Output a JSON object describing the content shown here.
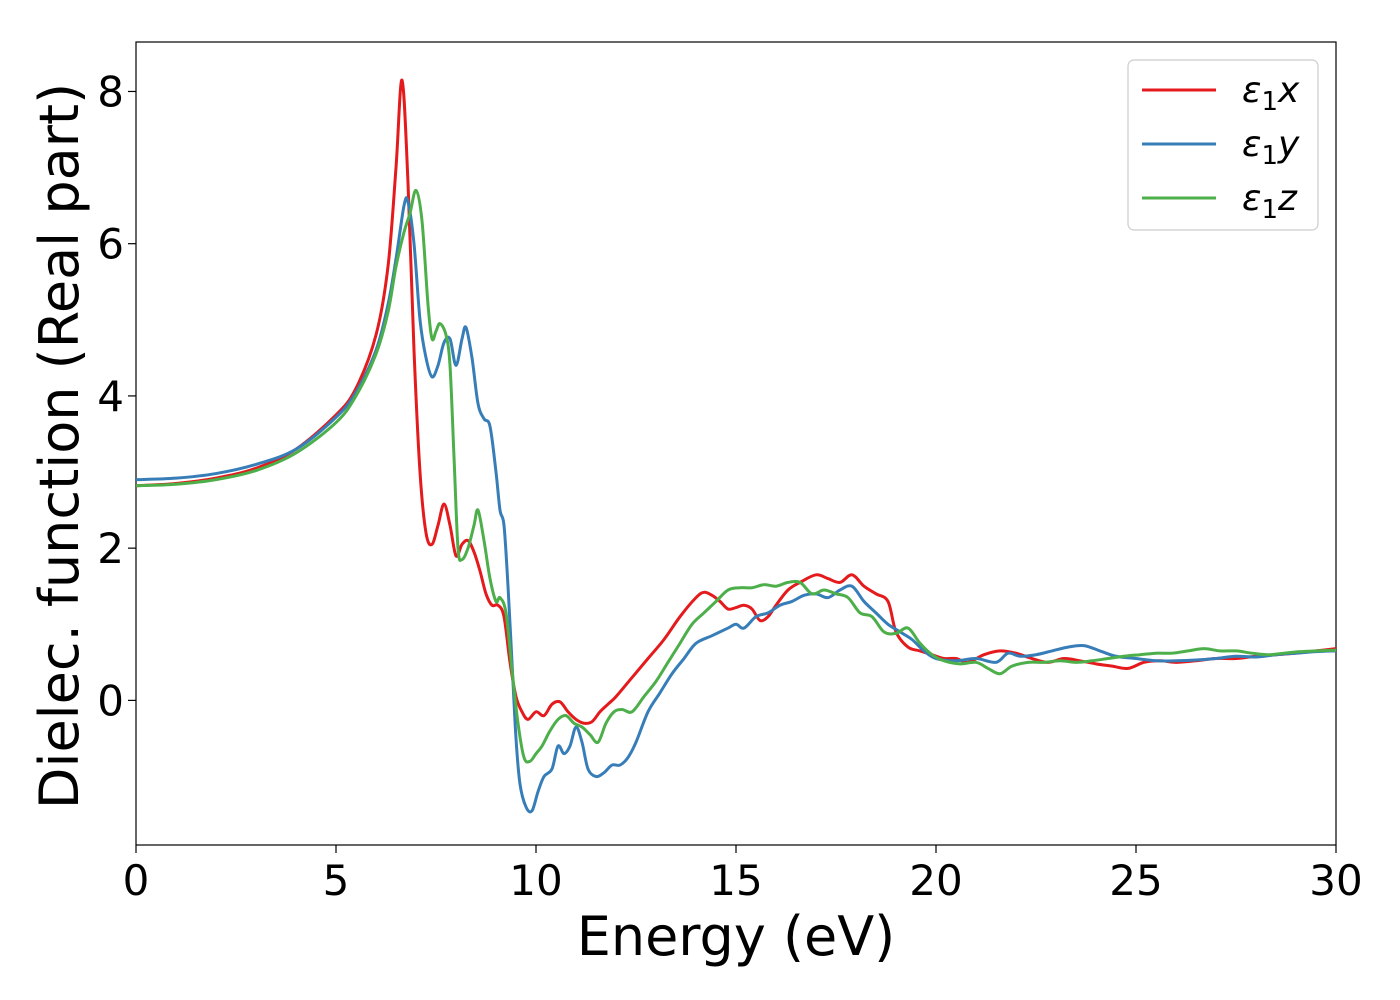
{
  "chart_data": {
    "type": "line",
    "title": "",
    "xlabel": "Energy (eV)",
    "ylabel": "Dielec. function (Real part)",
    "xlim": [
      0,
      30
    ],
    "ylim": [
      -1.9,
      8.65
    ],
    "xticks": [
      0,
      5,
      10,
      15,
      20,
      25,
      30
    ],
    "yticks": [
      0,
      2,
      4,
      6,
      8
    ],
    "grid": false,
    "legend_position": "top-right",
    "series": [
      {
        "name": "ε₁x",
        "legend_base": "ε",
        "legend_sub": "1",
        "legend_tail": "x",
        "color": "#e41a1c",
        "points": [
          [
            0,
            2.82
          ],
          [
            1,
            2.85
          ],
          [
            2,
            2.92
          ],
          [
            3,
            3.05
          ],
          [
            4,
            3.3
          ],
          [
            5,
            3.75
          ],
          [
            5.5,
            4.1
          ],
          [
            6,
            4.8
          ],
          [
            6.3,
            5.7
          ],
          [
            6.5,
            7.0
          ],
          [
            6.65,
            8.15
          ],
          [
            6.8,
            6.8
          ],
          [
            6.95,
            4.6
          ],
          [
            7.1,
            3.0
          ],
          [
            7.25,
            2.2
          ],
          [
            7.4,
            2.05
          ],
          [
            7.55,
            2.3
          ],
          [
            7.7,
            2.58
          ],
          [
            7.85,
            2.3
          ],
          [
            8.0,
            1.9
          ],
          [
            8.15,
            2.05
          ],
          [
            8.3,
            2.1
          ],
          [
            8.45,
            1.95
          ],
          [
            8.6,
            1.7
          ],
          [
            8.75,
            1.4
          ],
          [
            8.9,
            1.25
          ],
          [
            9.05,
            1.25
          ],
          [
            9.2,
            1.1
          ],
          [
            9.35,
            0.5
          ],
          [
            9.5,
            0.05
          ],
          [
            9.65,
            -0.15
          ],
          [
            9.8,
            -0.25
          ],
          [
            10.0,
            -0.15
          ],
          [
            10.2,
            -0.2
          ],
          [
            10.4,
            -0.05
          ],
          [
            10.6,
            -0.02
          ],
          [
            10.8,
            -0.15
          ],
          [
            11.0,
            -0.25
          ],
          [
            11.2,
            -0.3
          ],
          [
            11.4,
            -0.28
          ],
          [
            11.6,
            -0.15
          ],
          [
            11.8,
            -0.05
          ],
          [
            12.0,
            0.05
          ],
          [
            12.4,
            0.3
          ],
          [
            12.8,
            0.55
          ],
          [
            13.2,
            0.8
          ],
          [
            13.6,
            1.1
          ],
          [
            14.0,
            1.35
          ],
          [
            14.2,
            1.42
          ],
          [
            14.4,
            1.38
          ],
          [
            14.6,
            1.3
          ],
          [
            14.8,
            1.2
          ],
          [
            15.0,
            1.22
          ],
          [
            15.2,
            1.25
          ],
          [
            15.4,
            1.2
          ],
          [
            15.6,
            1.05
          ],
          [
            15.8,
            1.1
          ],
          [
            16.0,
            1.25
          ],
          [
            16.3,
            1.45
          ],
          [
            16.6,
            1.55
          ],
          [
            17.0,
            1.65
          ],
          [
            17.3,
            1.6
          ],
          [
            17.6,
            1.55
          ],
          [
            17.9,
            1.65
          ],
          [
            18.2,
            1.5
          ],
          [
            18.5,
            1.4
          ],
          [
            18.8,
            1.3
          ],
          [
            19.0,
            0.9
          ],
          [
            19.3,
            0.7
          ],
          [
            19.6,
            0.65
          ],
          [
            19.9,
            0.6
          ],
          [
            20.2,
            0.55
          ],
          [
            20.5,
            0.55
          ],
          [
            20.8,
            0.5
          ],
          [
            21.2,
            0.6
          ],
          [
            21.6,
            0.65
          ],
          [
            22.0,
            0.62
          ],
          [
            22.4,
            0.55
          ],
          [
            22.8,
            0.5
          ],
          [
            23.2,
            0.55
          ],
          [
            23.6,
            0.52
          ],
          [
            24.0,
            0.48
          ],
          [
            24.4,
            0.45
          ],
          [
            24.8,
            0.42
          ],
          [
            25.2,
            0.5
          ],
          [
            25.6,
            0.52
          ],
          [
            26.0,
            0.5
          ],
          [
            26.5,
            0.52
          ],
          [
            27.0,
            0.55
          ],
          [
            27.5,
            0.55
          ],
          [
            28.0,
            0.58
          ],
          [
            28.5,
            0.6
          ],
          [
            29.0,
            0.62
          ],
          [
            29.5,
            0.65
          ],
          [
            30.0,
            0.68
          ]
        ]
      },
      {
        "name": "ε₁y",
        "legend_base": "ε",
        "legend_sub": "1",
        "legend_tail": "y",
        "color": "#377eb8",
        "points": [
          [
            0,
            2.9
          ],
          [
            1,
            2.92
          ],
          [
            2,
            2.98
          ],
          [
            3,
            3.1
          ],
          [
            4,
            3.3
          ],
          [
            5,
            3.72
          ],
          [
            5.5,
            4.05
          ],
          [
            6,
            4.6
          ],
          [
            6.3,
            5.2
          ],
          [
            6.5,
            5.8
          ],
          [
            6.7,
            6.5
          ],
          [
            6.8,
            6.55
          ],
          [
            6.95,
            6.0
          ],
          [
            7.1,
            5.0
          ],
          [
            7.25,
            4.5
          ],
          [
            7.4,
            4.25
          ],
          [
            7.55,
            4.4
          ],
          [
            7.7,
            4.7
          ],
          [
            7.85,
            4.75
          ],
          [
            8.0,
            4.4
          ],
          [
            8.15,
            4.75
          ],
          [
            8.25,
            4.9
          ],
          [
            8.4,
            4.5
          ],
          [
            8.55,
            3.9
          ],
          [
            8.7,
            3.7
          ],
          [
            8.85,
            3.6
          ],
          [
            9.0,
            3.0
          ],
          [
            9.1,
            2.5
          ],
          [
            9.2,
            2.3
          ],
          [
            9.3,
            1.5
          ],
          [
            9.4,
            0.5
          ],
          [
            9.5,
            -0.5
          ],
          [
            9.6,
            -1.1
          ],
          [
            9.75,
            -1.4
          ],
          [
            9.9,
            -1.45
          ],
          [
            10.05,
            -1.2
          ],
          [
            10.2,
            -1.0
          ],
          [
            10.4,
            -0.9
          ],
          [
            10.55,
            -0.6
          ],
          [
            10.7,
            -0.7
          ],
          [
            10.85,
            -0.6
          ],
          [
            11.0,
            -0.35
          ],
          [
            11.15,
            -0.55
          ],
          [
            11.3,
            -0.9
          ],
          [
            11.5,
            -1.0
          ],
          [
            11.7,
            -0.95
          ],
          [
            11.9,
            -0.85
          ],
          [
            12.1,
            -0.85
          ],
          [
            12.3,
            -0.75
          ],
          [
            12.5,
            -0.55
          ],
          [
            12.8,
            -0.15
          ],
          [
            13.1,
            0.1
          ],
          [
            13.4,
            0.35
          ],
          [
            13.7,
            0.55
          ],
          [
            14.0,
            0.75
          ],
          [
            14.4,
            0.85
          ],
          [
            14.8,
            0.95
          ],
          [
            15.0,
            1.0
          ],
          [
            15.2,
            0.95
          ],
          [
            15.5,
            1.1
          ],
          [
            15.8,
            1.15
          ],
          [
            16.1,
            1.25
          ],
          [
            16.4,
            1.3
          ],
          [
            16.7,
            1.38
          ],
          [
            17.0,
            1.4
          ],
          [
            17.3,
            1.35
          ],
          [
            17.6,
            1.45
          ],
          [
            17.9,
            1.5
          ],
          [
            18.2,
            1.3
          ],
          [
            18.5,
            1.15
          ],
          [
            18.8,
            1.0
          ],
          [
            19.1,
            0.9
          ],
          [
            19.4,
            0.8
          ],
          [
            19.7,
            0.65
          ],
          [
            20.0,
            0.55
          ],
          [
            20.5,
            0.52
          ],
          [
            21.0,
            0.55
          ],
          [
            21.5,
            0.5
          ],
          [
            21.8,
            0.62
          ],
          [
            22.1,
            0.58
          ],
          [
            22.5,
            0.6
          ],
          [
            22.9,
            0.65
          ],
          [
            23.3,
            0.7
          ],
          [
            23.7,
            0.72
          ],
          [
            24.1,
            0.65
          ],
          [
            24.5,
            0.58
          ],
          [
            25.0,
            0.55
          ],
          [
            25.5,
            0.52
          ],
          [
            26.0,
            0.52
          ],
          [
            26.5,
            0.53
          ],
          [
            27.0,
            0.55
          ],
          [
            27.5,
            0.58
          ],
          [
            28.0,
            0.57
          ],
          [
            28.5,
            0.6
          ],
          [
            29.0,
            0.62
          ],
          [
            29.5,
            0.64
          ],
          [
            30.0,
            0.65
          ]
        ]
      },
      {
        "name": "ε₁z",
        "legend_base": "ε",
        "legend_sub": "1",
        "legend_tail": "z",
        "color": "#4daf4a",
        "points": [
          [
            0,
            2.82
          ],
          [
            1,
            2.84
          ],
          [
            2,
            2.9
          ],
          [
            3,
            3.02
          ],
          [
            4,
            3.25
          ],
          [
            5,
            3.65
          ],
          [
            5.5,
            4.0
          ],
          [
            6,
            4.55
          ],
          [
            6.3,
            5.1
          ],
          [
            6.5,
            5.7
          ],
          [
            6.7,
            6.15
          ],
          [
            6.85,
            6.4
          ],
          [
            7.0,
            6.7
          ],
          [
            7.15,
            6.3
          ],
          [
            7.3,
            5.2
          ],
          [
            7.4,
            4.75
          ],
          [
            7.5,
            4.85
          ],
          [
            7.6,
            4.95
          ],
          [
            7.75,
            4.8
          ],
          [
            7.85,
            4.4
          ],
          [
            7.95,
            3.2
          ],
          [
            8.05,
            2.0
          ],
          [
            8.15,
            1.85
          ],
          [
            8.3,
            2.0
          ],
          [
            8.45,
            2.3
          ],
          [
            8.55,
            2.5
          ],
          [
            8.7,
            2.1
          ],
          [
            8.85,
            1.6
          ],
          [
            9.0,
            1.3
          ],
          [
            9.1,
            1.35
          ],
          [
            9.25,
            1.15
          ],
          [
            9.4,
            0.4
          ],
          [
            9.55,
            -0.3
          ],
          [
            9.7,
            -0.75
          ],
          [
            9.85,
            -0.8
          ],
          [
            10.0,
            -0.7
          ],
          [
            10.15,
            -0.6
          ],
          [
            10.35,
            -0.4
          ],
          [
            10.55,
            -0.25
          ],
          [
            10.75,
            -0.2
          ],
          [
            10.95,
            -0.3
          ],
          [
            11.15,
            -0.35
          ],
          [
            11.35,
            -0.45
          ],
          [
            11.55,
            -0.55
          ],
          [
            11.75,
            -0.3
          ],
          [
            11.95,
            -0.15
          ],
          [
            12.15,
            -0.12
          ],
          [
            12.4,
            -0.15
          ],
          [
            12.7,
            0.05
          ],
          [
            13.0,
            0.25
          ],
          [
            13.3,
            0.5
          ],
          [
            13.6,
            0.75
          ],
          [
            13.9,
            1.0
          ],
          [
            14.2,
            1.15
          ],
          [
            14.5,
            1.3
          ],
          [
            14.8,
            1.45
          ],
          [
            15.1,
            1.48
          ],
          [
            15.4,
            1.48
          ],
          [
            15.7,
            1.52
          ],
          [
            16.0,
            1.5
          ],
          [
            16.3,
            1.55
          ],
          [
            16.6,
            1.55
          ],
          [
            16.9,
            1.4
          ],
          [
            17.2,
            1.45
          ],
          [
            17.5,
            1.4
          ],
          [
            17.8,
            1.35
          ],
          [
            18.1,
            1.15
          ],
          [
            18.4,
            1.1
          ],
          [
            18.7,
            0.9
          ],
          [
            19.0,
            0.88
          ],
          [
            19.3,
            0.95
          ],
          [
            19.6,
            0.75
          ],
          [
            19.9,
            0.6
          ],
          [
            20.2,
            0.52
          ],
          [
            20.6,
            0.48
          ],
          [
            21.0,
            0.5
          ],
          [
            21.3,
            0.42
          ],
          [
            21.6,
            0.35
          ],
          [
            21.9,
            0.45
          ],
          [
            22.3,
            0.5
          ],
          [
            22.7,
            0.5
          ],
          [
            23.1,
            0.52
          ],
          [
            23.5,
            0.5
          ],
          [
            23.9,
            0.52
          ],
          [
            24.3,
            0.55
          ],
          [
            24.7,
            0.58
          ],
          [
            25.1,
            0.6
          ],
          [
            25.5,
            0.62
          ],
          [
            25.9,
            0.62
          ],
          [
            26.3,
            0.65
          ],
          [
            26.7,
            0.68
          ],
          [
            27.1,
            0.65
          ],
          [
            27.5,
            0.65
          ],
          [
            27.9,
            0.62
          ],
          [
            28.3,
            0.6
          ],
          [
            28.7,
            0.62
          ],
          [
            29.1,
            0.64
          ],
          [
            29.5,
            0.65
          ],
          [
            30.0,
            0.66
          ]
        ]
      }
    ]
  }
}
